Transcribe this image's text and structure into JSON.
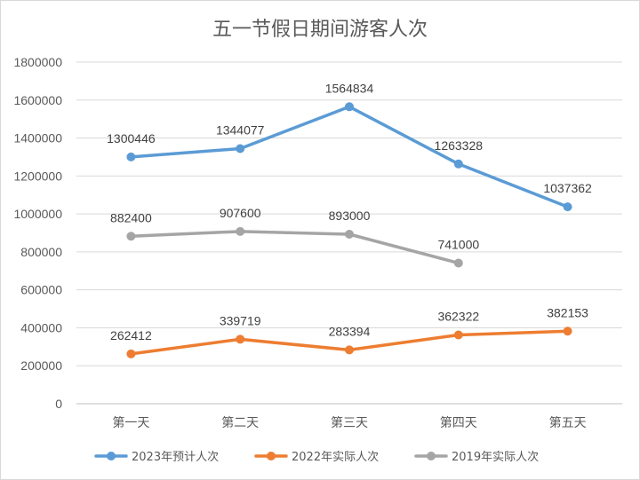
{
  "chart_data": {
    "type": "line",
    "title": "五一节假日期间游客人次",
    "categories": [
      "第一天",
      "第二天",
      "第三天",
      "第四天",
      "第五天"
    ],
    "ylim": [
      0,
      1800000
    ],
    "yticks": [
      0,
      200000,
      400000,
      600000,
      800000,
      1000000,
      1200000,
      1400000,
      1600000,
      1800000
    ],
    "grid": true,
    "legend_position": "bottom",
    "series": [
      {
        "name": "2023年预计人次",
        "color": "#5b9bd5",
        "values": [
          1300446,
          1344077,
          1564834,
          1263328,
          1037362
        ]
      },
      {
        "name": "2022年实际人次",
        "color": "#ed7d31",
        "values": [
          262412,
          339719,
          283394,
          362322,
          382153
        ]
      },
      {
        "name": "2019年实际人次",
        "color": "#a5a5a5",
        "values": [
          882400,
          907600,
          893000,
          741000,
          null
        ]
      }
    ]
  }
}
